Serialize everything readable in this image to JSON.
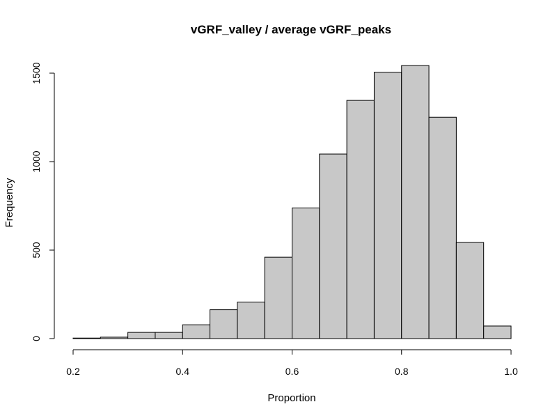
{
  "chart_data": {
    "type": "bar",
    "title": "vGRF_valley / average vGRF_peaks",
    "xlabel": "Proportion",
    "ylabel": "Frequency",
    "xlim": [
      0.2,
      1.0
    ],
    "ylim": [
      0,
      1500
    ],
    "x_ticks": [
      0.2,
      0.4,
      0.6,
      0.8,
      1.0
    ],
    "x_tick_labels": [
      "0.2",
      "0.4",
      "0.6",
      "0.8",
      "1.0"
    ],
    "y_ticks": [
      0,
      500,
      1000,
      1500
    ],
    "y_tick_labels": [
      "0",
      "500",
      "1000",
      "1500"
    ],
    "bins": [
      {
        "start": 0.2,
        "end": 0.25,
        "count": 3
      },
      {
        "start": 0.25,
        "end": 0.3,
        "count": 8
      },
      {
        "start": 0.3,
        "end": 0.35,
        "count": 35
      },
      {
        "start": 0.35,
        "end": 0.4,
        "count": 35
      },
      {
        "start": 0.4,
        "end": 0.45,
        "count": 78
      },
      {
        "start": 0.45,
        "end": 0.5,
        "count": 163
      },
      {
        "start": 0.5,
        "end": 0.55,
        "count": 206
      },
      {
        "start": 0.55,
        "end": 0.6,
        "count": 460
      },
      {
        "start": 0.6,
        "end": 0.65,
        "count": 738
      },
      {
        "start": 0.65,
        "end": 0.7,
        "count": 1043
      },
      {
        "start": 0.7,
        "end": 0.75,
        "count": 1346
      },
      {
        "start": 0.75,
        "end": 0.8,
        "count": 1505
      },
      {
        "start": 0.8,
        "end": 0.85,
        "count": 1543
      },
      {
        "start": 0.85,
        "end": 0.9,
        "count": 1251
      },
      {
        "start": 0.9,
        "end": 0.95,
        "count": 543
      },
      {
        "start": 0.95,
        "end": 1.0,
        "count": 71
      }
    ],
    "bar_color": "#c8c8c8",
    "grid": false,
    "legend": "none"
  }
}
